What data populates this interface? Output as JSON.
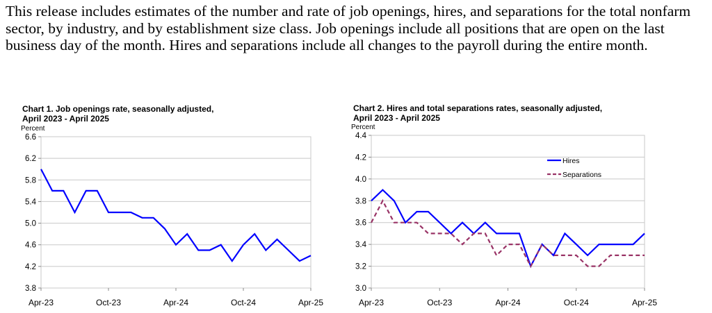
{
  "intro_text": "This release includes estimates of the number and rate of job openings, hires, and separations for the total nonfarm sector, by industry, and by establishment size class. Job openings include all positions that are open on the last business day of the month. Hires and separations include all changes to the payroll during the entire month.",
  "chart_data": [
    {
      "type": "line",
      "title_line1": "Chart 1. Job openings rate, seasonally adjusted,",
      "title_line2": "April 2023 - April 2025",
      "ylabel": "Percent",
      "ylim": [
        3.8,
        6.6
      ],
      "yticks": [
        "6.6",
        "6.2",
        "5.8",
        "5.4",
        "5.0",
        "4.6",
        "4.2",
        "3.8"
      ],
      "xtick_labels": [
        "Apr-23",
        "Oct-23",
        "Apr-24",
        "Oct-24",
        "Apr-25"
      ],
      "grid": true,
      "series": [
        {
          "color": "#0000ff",
          "values": [
            6.0,
            5.6,
            5.6,
            5.2,
            5.6,
            5.6,
            5.2,
            5.2,
            5.2,
            5.1,
            5.1,
            4.9,
            4.6,
            4.8,
            4.5,
            4.5,
            4.6,
            4.3,
            4.6,
            4.8,
            4.5,
            4.7,
            4.5,
            4.3,
            4.4
          ]
        }
      ]
    },
    {
      "type": "line",
      "title_line1": "Chart 2. Hires and total separations rates, seasonally adjusted,",
      "title_line2": "April 2023 - April 2025",
      "ylabel": "Percent",
      "ylim": [
        3.0,
        4.4
      ],
      "yticks": [
        "4.4",
        "4.2",
        "4.0",
        "3.8",
        "3.6",
        "3.4",
        "3.2",
        "3.0"
      ],
      "xtick_labels": [
        "Apr-23",
        "Oct-23",
        "Apr-24",
        "Oct-24",
        "Apr-25"
      ],
      "grid": true,
      "legend": "top-right",
      "series": [
        {
          "name": "Hires",
          "color": "#0000ff",
          "style": "solid",
          "values": [
            3.8,
            3.9,
            3.8,
            3.6,
            3.7,
            3.7,
            3.6,
            3.5,
            3.6,
            3.5,
            3.6,
            3.5,
            3.5,
            3.5,
            3.2,
            3.4,
            3.3,
            3.5,
            3.4,
            3.3,
            3.4,
            3.4,
            3.4,
            3.4,
            3.5
          ]
        },
        {
          "name": "Separations",
          "color": "#993366",
          "style": "dashed",
          "values": [
            3.6,
            3.8,
            3.6,
            3.6,
            3.6,
            3.5,
            3.5,
            3.5,
            3.4,
            3.5,
            3.5,
            3.3,
            3.4,
            3.4,
            3.2,
            3.4,
            3.3,
            3.3,
            3.3,
            3.2,
            3.2,
            3.3,
            3.3,
            3.3,
            3.3
          ]
        }
      ]
    }
  ]
}
